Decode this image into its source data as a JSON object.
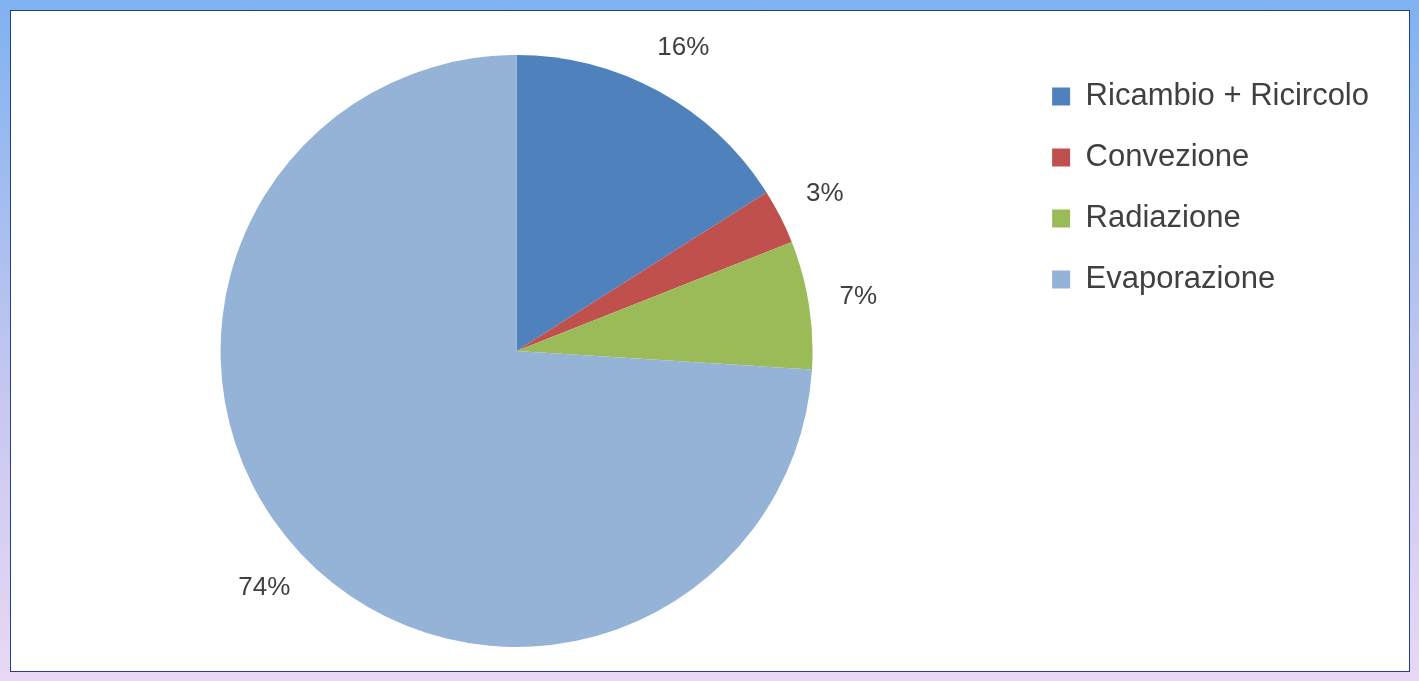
{
  "chart_data": {
    "type": "pie",
    "categories": [
      "Ricambio + Ricircolo",
      "Convezione",
      "Radiazione",
      "Evaporazione"
    ],
    "values": [
      16,
      3,
      7,
      74
    ],
    "colors": [
      "#4f81bd",
      "#c0504d",
      "#9bbb59",
      "#95b3d7"
    ],
    "value_labels": [
      "16%",
      "3%",
      "7%",
      "74%"
    ],
    "legend": "top right"
  }
}
